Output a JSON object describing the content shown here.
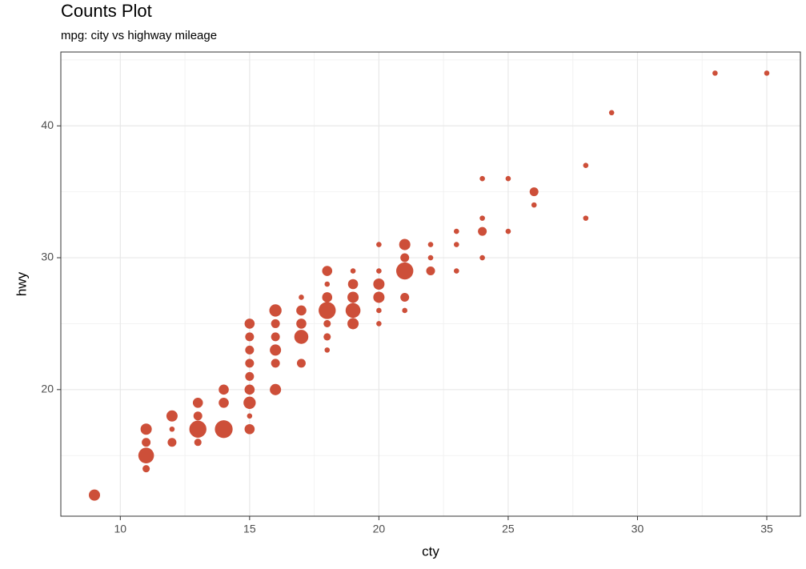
{
  "chart_data": {
    "type": "scatter",
    "title": "Counts Plot",
    "subtitle": "mpg: city vs highway mileage",
    "x_label": "cty",
    "y_label": "hwy",
    "color": "#cd4f39",
    "grid": true,
    "xlim": [
      7.7,
      36.3
    ],
    "ylim": [
      10.4,
      45.6
    ],
    "xticks": [
      10,
      15,
      20,
      25,
      30,
      35
    ],
    "yticks": [
      20,
      30,
      40
    ],
    "x": [
      9,
      11,
      11,
      11,
      11,
      12,
      12,
      12,
      13,
      13,
      13,
      13,
      14,
      14,
      14,
      15,
      15,
      15,
      15,
      15,
      15,
      15,
      15,
      15,
      16,
      16,
      16,
      16,
      16,
      16,
      17,
      17,
      17,
      17,
      17,
      18,
      18,
      18,
      18,
      18,
      18,
      18,
      19,
      19,
      19,
      19,
      19,
      20,
      20,
      20,
      20,
      20,
      20,
      21,
      21,
      21,
      21,
      21,
      22,
      22,
      22,
      23,
      23,
      23,
      24,
      24,
      24,
      24,
      25,
      25,
      26,
      26,
      28,
      28,
      29,
      33,
      35
    ],
    "values": [
      12,
      14,
      15,
      16,
      17,
      16,
      17,
      18,
      16,
      17,
      18,
      19,
      17,
      19,
      20,
      17,
      18,
      19,
      20,
      21,
      22,
      23,
      24,
      25,
      20,
      22,
      23,
      24,
      25,
      26,
      22,
      24,
      25,
      26,
      27,
      23,
      24,
      25,
      26,
      27,
      28,
      29,
      25,
      26,
      27,
      28,
      29,
      25,
      26,
      27,
      28,
      29,
      31,
      26,
      27,
      29,
      30,
      31,
      29,
      30,
      31,
      29,
      31,
      32,
      30,
      32,
      33,
      36,
      32,
      36,
      34,
      35,
      33,
      37,
      41,
      44,
      44
    ],
    "sizes": [
      5,
      2,
      10,
      3,
      5,
      3,
      1,
      5,
      2,
      12,
      3,
      4,
      13,
      4,
      4,
      4,
      1,
      6,
      4,
      3,
      3,
      3,
      3,
      4,
      5,
      3,
      5,
      3,
      3,
      6,
      3,
      8,
      4,
      4,
      1,
      1,
      2,
      2,
      12,
      4,
      1,
      4,
      5,
      9,
      5,
      4,
      1,
      1,
      1,
      5,
      5,
      1,
      1,
      1,
      3,
      12,
      3,
      5,
      3,
      1,
      1,
      1,
      1,
      1,
      1,
      3,
      1,
      1,
      1,
      1,
      1,
      3,
      1,
      1,
      1,
      1,
      1
    ]
  }
}
